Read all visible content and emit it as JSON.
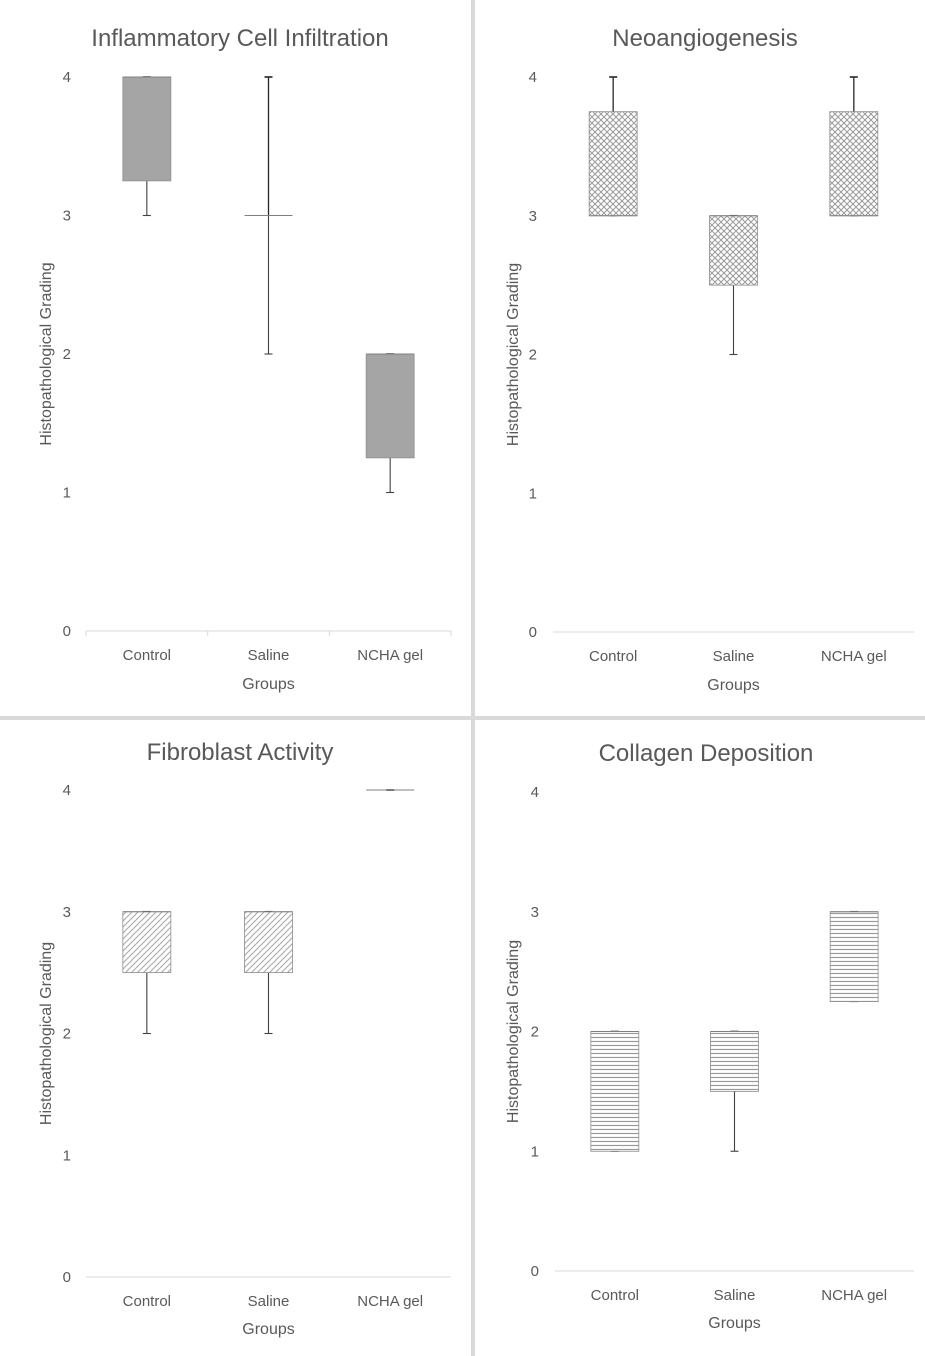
{
  "chart_data": [
    {
      "type": "box",
      "title": "Inflammatory Cell Infiltration",
      "xlabel": "Groups",
      "ylabel": "Histopathological Grading",
      "ylim": [
        0,
        4
      ],
      "yticks": [
        "0",
        "1",
        "2",
        "3",
        "4"
      ],
      "categories": [
        "Control",
        "Saline",
        "NCHA  gel"
      ],
      "boxes": [
        {
          "min": 3,
          "q1": 3.25,
          "median": 4,
          "q3": 4,
          "max": 4
        },
        {
          "min": 2,
          "q1": 3,
          "median": 3,
          "q3": 3,
          "max": 4
        },
        {
          "min": 1,
          "q1": 1.25,
          "median": 2,
          "q3": 2,
          "max": 2
        }
      ],
      "pattern": "solid-gray"
    },
    {
      "type": "box",
      "title": "Neoangiogenesis",
      "xlabel": "Groups",
      "ylabel": "Histopathological Grading",
      "ylim": [
        0,
        4
      ],
      "yticks": [
        "0",
        "1",
        "2",
        "3",
        "4"
      ],
      "categories": [
        "Control",
        "Saline",
        "NCHA  gel"
      ],
      "boxes": [
        {
          "min": 3,
          "q1": 3,
          "median": 3,
          "q3": 3.75,
          "max": 4
        },
        {
          "min": 2,
          "q1": 2.5,
          "median": 3,
          "q3": 3,
          "max": 3
        },
        {
          "min": 3,
          "q1": 3,
          "median": 3,
          "q3": 3.75,
          "max": 4
        }
      ],
      "pattern": "crosshatch"
    },
    {
      "type": "box",
      "title": "Fibroblast Activity",
      "xlabel": "",
      "ylabel": "Histopathological Grading",
      "ylim": [
        0,
        4
      ],
      "yticks": [
        "0",
        "1",
        "2",
        "3",
        "4"
      ],
      "categories": [
        "Control",
        "Saline",
        "NCHA  gel"
      ],
      "boxes": [
        {
          "min": 2,
          "q1": 2.5,
          "median": 3,
          "q3": 3,
          "max": 3
        },
        {
          "min": 2,
          "q1": 2.5,
          "median": 3,
          "q3": 3,
          "max": 3
        },
        {
          "min": 4,
          "q1": 4,
          "median": 4,
          "q3": 4,
          "max": 4
        }
      ],
      "pattern": "diagonal"
    },
    {
      "type": "box",
      "title": "Collagen Deposition",
      "xlabel": "",
      "ylabel": "Histopathological Grading",
      "ylim": [
        0,
        4
      ],
      "yticks": [
        "0",
        "1",
        "2",
        "3",
        "4"
      ],
      "categories": [
        "Control",
        "Saline",
        "NCHA  gel"
      ],
      "boxes": [
        {
          "min": 1,
          "q1": 1,
          "median": 2,
          "q3": 2,
          "max": 2
        },
        {
          "min": 1,
          "q1": 1.5,
          "median": 2,
          "q3": 2,
          "max": 2
        },
        {
          "min": 2.25,
          "q1": 2.25,
          "median": 3,
          "q3": 3,
          "max": 3
        }
      ],
      "pattern": "horizontal-lines"
    }
  ],
  "shared": {
    "groups_label": "Groups"
  }
}
